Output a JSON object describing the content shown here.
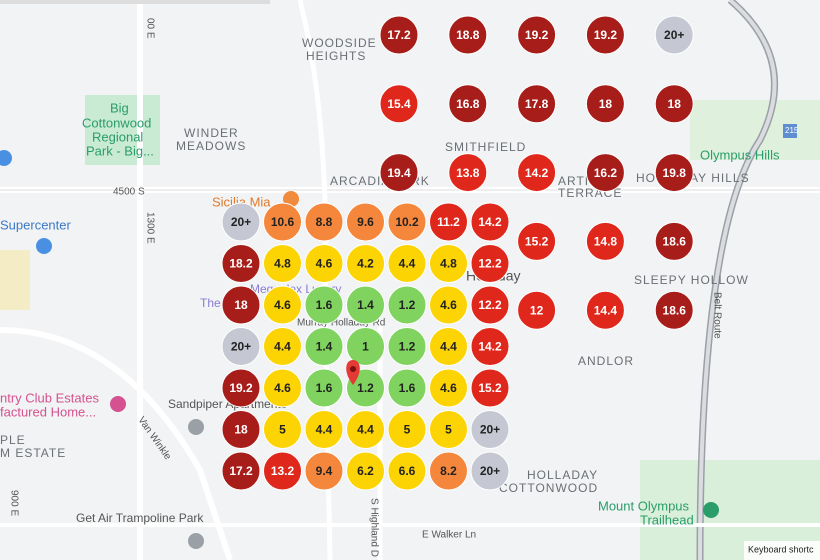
{
  "map": {
    "labels": {
      "woodside1": "WOODSIDE",
      "woodside2": "HEIGHTS",
      "big1": "Big",
      "big2": "Cottonwood",
      "big3": "Regional",
      "big4": "Park - Big...",
      "winder1": "WINDER",
      "winder2": "MEADOWS",
      "smithfield": "SMITHFIELD",
      "arcadia": "ARCADIA PARK",
      "sicilia": "Sicilia Mia",
      "s4500": "4500 S",
      "e1300": "1300 E",
      "supercenter": "Supercenter",
      "olympus": "Olympus Hills",
      "hhills": "HOLLADAY HILLS",
      "arti1": "ARTI",
      "arti2": "TERRACE",
      "holladay": "Holladay",
      "sleepy": "SLEEPY HOLLOW",
      "belt": "Belt Route",
      "megaplex": "Megaplex Luxury",
      "the": "The",
      "murray": "Murray Holladay Rd",
      "andlor": "ANDLOR",
      "country1": "ntry Club Estates",
      "country2": "factured Home...",
      "sandpiper": "Sandpiper Apartments",
      "vanwinkle": "Van Winkle",
      "ple1": "PLE",
      "ple2": "M ESTATE",
      "hc1": "HOLLADAY",
      "hc2": "COTTONWOOD",
      "mo1": "Mount Olympus",
      "mo2": "Trailhead",
      "getair": "Get Air Trampoline Park",
      "walker": "E Walker Ln",
      "highland": "S Highland D",
      "e900": "900 E",
      "e00": "00 E",
      "i215": "215",
      "keyboard": "Keyboard shortc"
    }
  },
  "grid_markers": [
    [
      {
        "label": "20+",
        "color": "gray"
      },
      {
        "label": "10.6",
        "color": "orange"
      },
      {
        "label": "8.8",
        "color": "orange"
      },
      {
        "label": "9.6",
        "color": "orange"
      },
      {
        "label": "10.2",
        "color": "orange"
      },
      {
        "label": "11.2",
        "color": "red"
      },
      {
        "label": "14.2",
        "color": "red"
      }
    ],
    [
      {
        "label": "18.2",
        "color": "darkred"
      },
      {
        "label": "4.8",
        "color": "yellow"
      },
      {
        "label": "4.6",
        "color": "yellow"
      },
      {
        "label": "4.2",
        "color": "yellow"
      },
      {
        "label": "4.4",
        "color": "yellow"
      },
      {
        "label": "4.8",
        "color": "yellow"
      },
      {
        "label": "12.2",
        "color": "red"
      }
    ],
    [
      {
        "label": "18",
        "color": "darkred"
      },
      {
        "label": "4.6",
        "color": "yellow"
      },
      {
        "label": "1.6",
        "color": "green"
      },
      {
        "label": "1.4",
        "color": "green"
      },
      {
        "label": "1.2",
        "color": "green"
      },
      {
        "label": "4.6",
        "color": "yellow"
      },
      {
        "label": "12.2",
        "color": "red"
      }
    ],
    [
      {
        "label": "20+",
        "color": "gray"
      },
      {
        "label": "4.4",
        "color": "yellow"
      },
      {
        "label": "1.4",
        "color": "green"
      },
      {
        "label": "1",
        "color": "green"
      },
      {
        "label": "1.2",
        "color": "green"
      },
      {
        "label": "4.4",
        "color": "yellow"
      },
      {
        "label": "14.2",
        "color": "red"
      }
    ],
    [
      {
        "label": "19.2",
        "color": "darkred"
      },
      {
        "label": "4.6",
        "color": "yellow"
      },
      {
        "label": "1.6",
        "color": "green"
      },
      {
        "label": "1.2",
        "color": "green"
      },
      {
        "label": "1.6",
        "color": "green"
      },
      {
        "label": "4.6",
        "color": "yellow"
      },
      {
        "label": "15.2",
        "color": "red"
      }
    ],
    [
      {
        "label": "18",
        "color": "darkred"
      },
      {
        "label": "5",
        "color": "yellow"
      },
      {
        "label": "4.4",
        "color": "yellow"
      },
      {
        "label": "4.4",
        "color": "yellow"
      },
      {
        "label": "5",
        "color": "yellow"
      },
      {
        "label": "5",
        "color": "yellow"
      },
      {
        "label": "20+",
        "color": "gray"
      }
    ],
    [
      {
        "label": "17.2",
        "color": "darkred"
      },
      {
        "label": "13.2",
        "color": "red"
      },
      {
        "label": "9.4",
        "color": "orange"
      },
      {
        "label": "6.2",
        "color": "yellow"
      },
      {
        "label": "6.6",
        "color": "yellow"
      },
      {
        "label": "8.2",
        "color": "orange"
      },
      {
        "label": "20+",
        "color": "gray"
      }
    ]
  ],
  "outer_markers": [
    [
      {
        "label": "17.2",
        "color": "darkred"
      },
      {
        "label": "18.8",
        "color": "darkred"
      },
      {
        "label": "19.2",
        "color": "darkred"
      },
      {
        "label": "19.2",
        "color": "darkred"
      },
      {
        "label": "20+",
        "color": "gray"
      }
    ],
    [
      {
        "label": "15.4",
        "color": "red"
      },
      {
        "label": "16.8",
        "color": "darkred"
      },
      {
        "label": "17.8",
        "color": "darkred"
      },
      {
        "label": "18",
        "color": "darkred"
      },
      {
        "label": "18",
        "color": "darkred"
      }
    ],
    [
      {
        "label": "19.4",
        "color": "darkred"
      },
      {
        "label": "13.8",
        "color": "red"
      },
      {
        "label": "14.2",
        "color": "red"
      },
      {
        "label": "16.2",
        "color": "darkred"
      },
      {
        "label": "19.8",
        "color": "darkred"
      }
    ],
    [
      {
        "label": "15.2",
        "color": "red"
      },
      {
        "label": "14.8",
        "color": "red"
      },
      {
        "label": "18.6",
        "color": "darkred"
      }
    ],
    [
      {
        "label": "12",
        "color": "red"
      },
      {
        "label": "14.4",
        "color": "red"
      },
      {
        "label": "18.6",
        "color": "darkred"
      }
    ]
  ]
}
